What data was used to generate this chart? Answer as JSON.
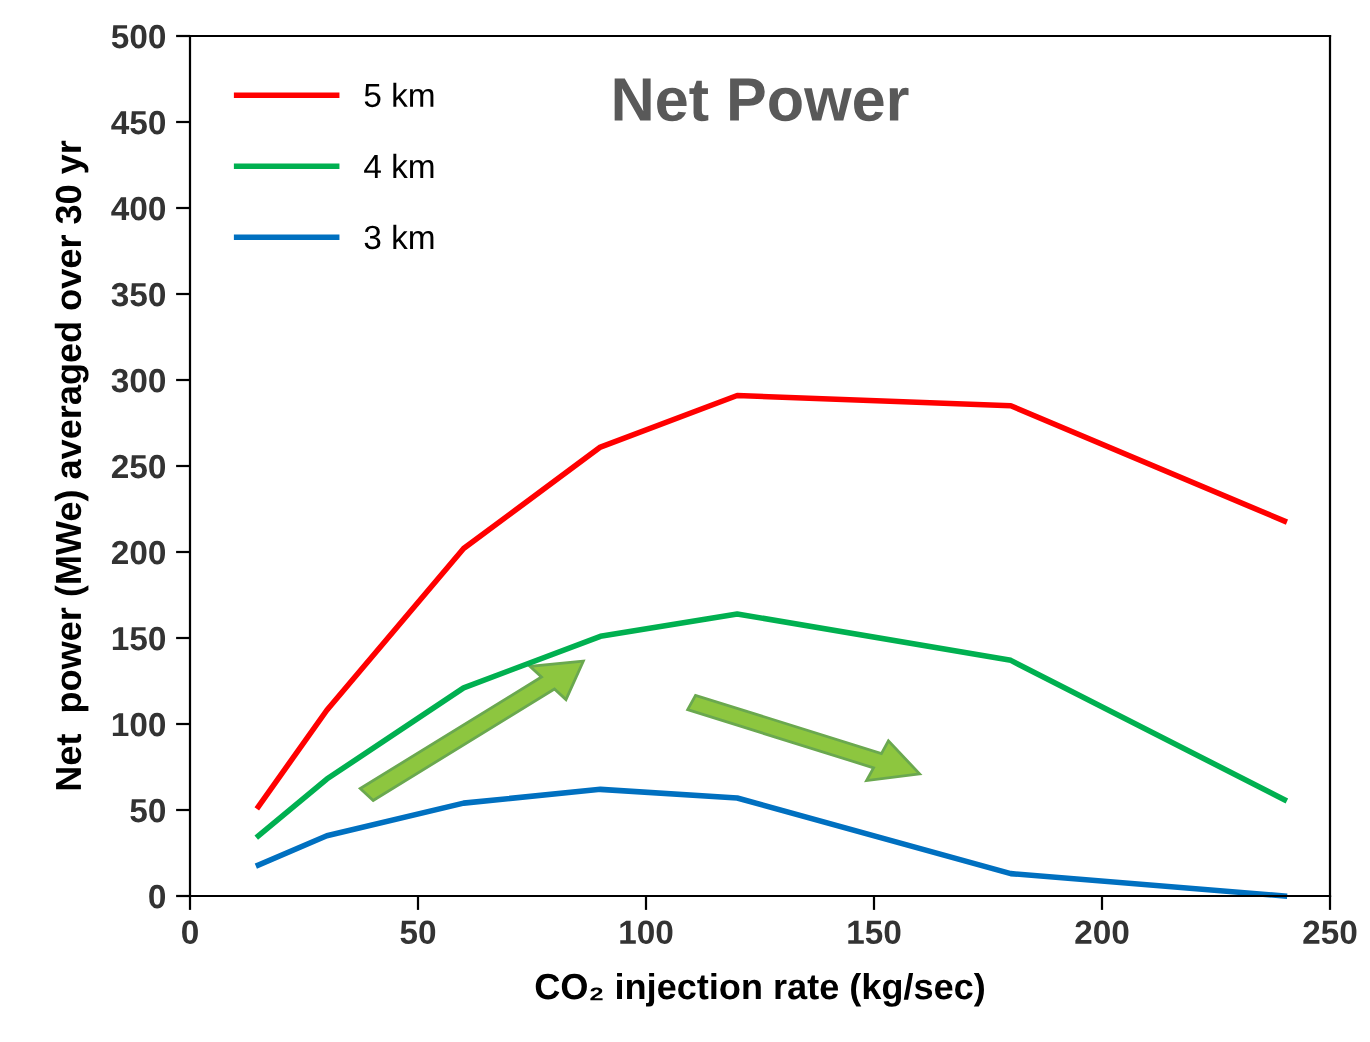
{
  "chart_data": {
    "type": "line",
    "title": "Net Power",
    "xlabel": "CO₂ injection rate (kg/sec)",
    "ylabel": "Net  power (MWe) averaged over 30 yr",
    "x": [
      15,
      30,
      60,
      90,
      120,
      180,
      240
    ],
    "series": [
      {
        "name": "5 km",
        "color": "#ff0000",
        "values": [
          52,
          108,
          202,
          261,
          291,
          285,
          218
        ]
      },
      {
        "name": "4 km",
        "color": "#00b050",
        "values": [
          35,
          68,
          121,
          151,
          164,
          137,
          56
        ]
      },
      {
        "name": "3 km",
        "color": "#0070c0",
        "values": [
          18,
          35,
          54,
          62,
          57,
          13,
          0
        ]
      }
    ],
    "xlim": [
      0,
      250
    ],
    "xticks": [
      0,
      50,
      100,
      150,
      200,
      250
    ],
    "ylim": [
      0,
      500
    ],
    "yticks": [
      0,
      50,
      100,
      150,
      200,
      250,
      300,
      350,
      400,
      450,
      500
    ],
    "grid": false,
    "legend": "top left",
    "marker": "none",
    "line_style": "solid"
  }
}
